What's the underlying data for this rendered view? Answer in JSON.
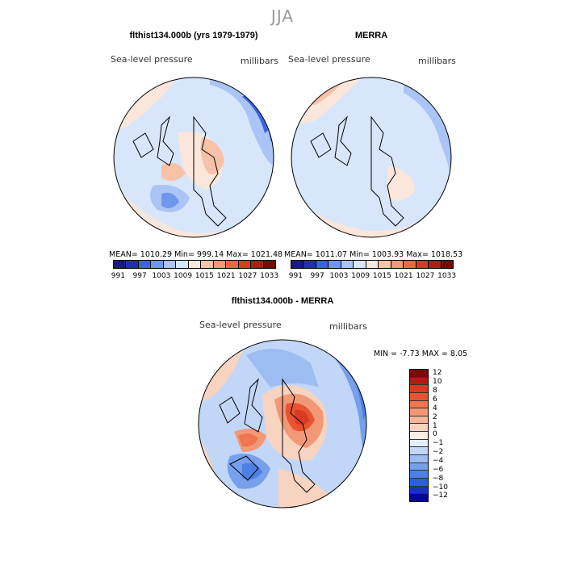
{
  "figure_title": "JJA",
  "panels": {
    "model": {
      "title": "flthist134.000b (yrs 1979-1979)",
      "variable": "Sea-level pressure",
      "units": "millibars",
      "stats": "MEAN= 1010.29   Min=  999.14   Max= 1021.48"
    },
    "obs": {
      "title": "MERRA",
      "variable": "Sea-level pressure",
      "units": "millibars",
      "stats": "MEAN= 1011.07   Min= 1003.93   Max= 1018.53"
    },
    "diff": {
      "title": "flthist134.000b - MERRA",
      "variable": "Sea-level pressure",
      "units": "millibars",
      "stats": "MIN =   -7.73 MAX =    8.05"
    }
  },
  "colorbar_top": {
    "colors": [
      "#1a1a7e",
      "#1f2fb8",
      "#3a64e0",
      "#6f97ee",
      "#a9c4f5",
      "#d7e6fb",
      "#fbe6dc",
      "#f7c2a8",
      "#f29877",
      "#e8684a",
      "#d93a22",
      "#b01d12",
      "#7a0a05"
    ],
    "tick_labels": [
      "991",
      "997",
      "1003",
      "1009",
      "1015",
      "1021",
      "1027",
      "1033"
    ]
  },
  "colorbar_diff": {
    "colors": [
      "#7a0a05",
      "#b01d12",
      "#d93a22",
      "#e8542f",
      "#ef7650",
      "#f29877",
      "#f5b597",
      "#f8d3c0",
      "#fdefe6",
      "#e4eefc",
      "#c2d7f7",
      "#9dbdf2",
      "#769fec",
      "#4f80e5",
      "#2b5fdb",
      "#1533c4",
      "#060a8a"
    ],
    "tick_labels": [
      "12",
      "10",
      "8",
      "6",
      "4",
      "2",
      "1",
      "0",
      "−1",
      "−2",
      "−4",
      "−6",
      "−8",
      "−10",
      "−12"
    ]
  }
}
